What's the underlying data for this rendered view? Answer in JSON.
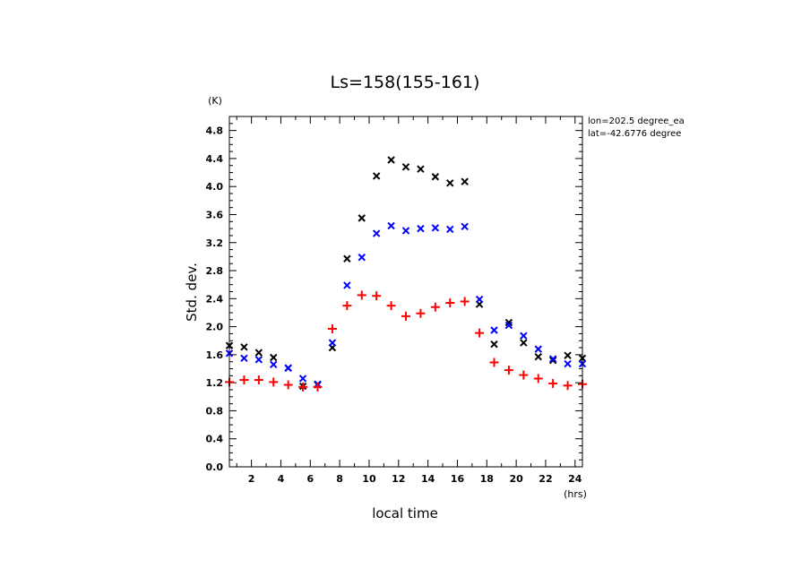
{
  "chart_data": {
    "type": "scatter",
    "title": "Ls=158(155-161)",
    "xlabel": "local time",
    "ylabel": "Std. dev.",
    "x_unit": "(hrs)",
    "y_unit": "(K)",
    "xlim": [
      0.5,
      24.5
    ],
    "ylim": [
      0.0,
      5.0
    ],
    "x_ticks": [
      2,
      4,
      6,
      8,
      10,
      12,
      14,
      16,
      18,
      20,
      22,
      24
    ],
    "x_tick_labels": [
      "2",
      "4",
      "6",
      "8",
      "10",
      "12",
      "14",
      "16",
      "18",
      "20",
      "22",
      "24"
    ],
    "y_ticks": [
      0.0,
      0.4,
      0.8,
      1.2,
      1.6,
      2.0,
      2.4,
      2.8,
      3.2,
      3.6,
      4.0,
      4.4,
      4.8
    ],
    "y_tick_labels": [
      "0.0",
      "0.4",
      "0.8",
      "1.2",
      "1.6",
      "2.0",
      "2.4",
      "2.8",
      "3.2",
      "3.6",
      "4.0",
      "4.4",
      "4.8"
    ],
    "annotations": [
      "lon=202.5 degree_ea",
      "lat=-42.6776 degree"
    ],
    "grid": false,
    "x": [
      0.5,
      1.5,
      2.5,
      3.5,
      4.5,
      5.5,
      6.5,
      7.5,
      8.5,
      9.5,
      10.5,
      11.5,
      12.5,
      13.5,
      14.5,
      15.5,
      16.5,
      17.5,
      18.5,
      19.5,
      20.5,
      21.5,
      22.5,
      23.5,
      24.5
    ],
    "series": [
      {
        "marker": "x",
        "color": "#000000",
        "values": [
          1.73,
          1.71,
          1.63,
          1.56,
          1.41,
          1.15,
          1.17,
          1.7,
          2.97,
          3.55,
          4.15,
          4.38,
          4.28,
          4.25,
          4.14,
          4.05,
          4.07,
          2.32,
          1.75,
          2.06,
          1.77,
          1.57,
          1.52,
          1.59,
          1.55
        ]
      },
      {
        "marker": "x",
        "color": "#0000ff",
        "values": [
          1.62,
          1.55,
          1.53,
          1.46,
          1.41,
          1.26,
          1.18,
          1.77,
          2.59,
          2.99,
          3.33,
          3.44,
          3.37,
          3.4,
          3.41,
          3.39,
          3.43,
          2.39,
          1.95,
          2.02,
          1.87,
          1.68,
          1.54,
          1.47,
          1.47
        ]
      },
      {
        "marker": "+",
        "color": "#ff0000",
        "values": [
          1.21,
          1.24,
          1.24,
          1.21,
          1.17,
          1.14,
          1.14,
          1.97,
          2.3,
          2.45,
          2.44,
          2.3,
          2.15,
          2.19,
          2.28,
          2.34,
          2.36,
          1.91,
          1.49,
          1.38,
          1.31,
          1.26,
          1.19,
          1.16,
          1.18
        ]
      }
    ]
  }
}
